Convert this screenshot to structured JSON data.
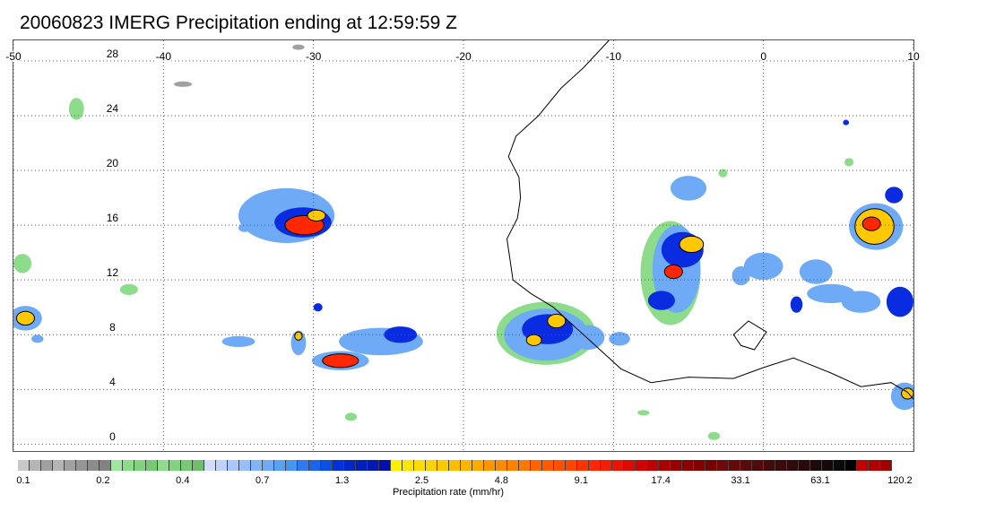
{
  "title": "20060823 IMERG Precipitation ending at 12:59:59 Z",
  "map": {
    "extent": {
      "lon_min": -50,
      "lon_max": 10,
      "lat_min": -0.5,
      "lat_max": 29.5
    },
    "lon_ticks": [
      {
        "value": -50,
        "label": "-50"
      },
      {
        "value": -40,
        "label": "-40"
      },
      {
        "value": -30,
        "label": "-30"
      },
      {
        "value": -20,
        "label": "-20"
      },
      {
        "value": -10,
        "label": "-10"
      },
      {
        "value": 0,
        "label": "0"
      },
      {
        "value": 10,
        "label": "10"
      }
    ],
    "lat_ticks": [
      {
        "value": 0,
        "label": "0"
      },
      {
        "value": 4,
        "label": "4"
      },
      {
        "value": 8,
        "label": "8"
      },
      {
        "value": 12,
        "label": "12"
      },
      {
        "value": 16,
        "label": "16"
      },
      {
        "value": 20,
        "label": "20"
      },
      {
        "value": 24,
        "label": "24"
      },
      {
        "value": 28,
        "label": "28"
      }
    ],
    "grid": "dotted",
    "coastline": [
      [
        -10.3,
        29.5
      ],
      [
        -12,
        27.5
      ],
      [
        -13.5,
        26
      ],
      [
        -15,
        24
      ],
      [
        -16.5,
        22.5
      ],
      [
        -17,
        21
      ],
      [
        -16.3,
        19.5
      ],
      [
        -16.2,
        18
      ],
      [
        -16.4,
        16.5
      ],
      [
        -17.1,
        15
      ],
      [
        -16.9,
        13.5
      ],
      [
        -16.7,
        12
      ],
      [
        -15.5,
        11
      ],
      [
        -14,
        10
      ],
      [
        -13,
        9
      ],
      [
        -12,
        8
      ],
      [
        -11,
        7
      ],
      [
        -9.5,
        5.5
      ],
      [
        -7.5,
        4.5
      ],
      [
        -5,
        4.9
      ],
      [
        -2,
        4.8
      ],
      [
        0,
        5.6
      ],
      [
        2,
        6.3
      ],
      [
        4.5,
        5.2
      ],
      [
        6.5,
        4.2
      ],
      [
        8.5,
        4.5
      ],
      [
        9.6,
        3.8
      ],
      [
        10,
        3.3
      ]
    ],
    "lake": [
      [
        -2,
        8
      ],
      [
        -1,
        9
      ],
      [
        0.2,
        8.2
      ],
      [
        -0.6,
        6.9
      ],
      [
        -1.5,
        7.2
      ]
    ],
    "precip_cells": [
      {
        "lon": -31.8,
        "lat": 16.7,
        "rx": 3.2,
        "ry": 2.0,
        "level": 2
      },
      {
        "lon": -30.7,
        "lat": 16.2,
        "rx": 1.9,
        "ry": 1.1,
        "level": 3
      },
      {
        "lon": -30.6,
        "lat": 16.0,
        "rx": 1.3,
        "ry": 0.7,
        "level": 5
      },
      {
        "lon": -29.8,
        "lat": 16.7,
        "rx": 0.6,
        "ry": 0.4,
        "level": 4
      },
      {
        "lon": -28.2,
        "lat": 6.1,
        "rx": 1.9,
        "ry": 0.7,
        "level": 2
      },
      {
        "lon": -28.2,
        "lat": 6.1,
        "rx": 1.2,
        "ry": 0.5,
        "level": 5
      },
      {
        "lon": -25.5,
        "lat": 7.5,
        "rx": 2.8,
        "ry": 1.0,
        "level": 2
      },
      {
        "lon": -24.2,
        "lat": 8.0,
        "rx": 1.1,
        "ry": 0.6,
        "level": 3
      },
      {
        "lon": -31.0,
        "lat": 7.4,
        "rx": 0.5,
        "ry": 0.9,
        "level": 2
      },
      {
        "lon": -31.0,
        "lat": 7.9,
        "rx": 0.25,
        "ry": 0.3,
        "level": 4
      },
      {
        "lon": -29.7,
        "lat": 10.0,
        "rx": 0.3,
        "ry": 0.3,
        "level": 3
      },
      {
        "lon": -35.0,
        "lat": 7.5,
        "rx": 1.1,
        "ry": 0.4,
        "level": 2
      },
      {
        "lon": -49.2,
        "lat": 9.2,
        "rx": 1.1,
        "ry": 0.9,
        "level": 2
      },
      {
        "lon": -49.2,
        "lat": 9.2,
        "rx": 0.6,
        "ry": 0.5,
        "level": 4
      },
      {
        "lon": -48.4,
        "lat": 7.7,
        "rx": 0.4,
        "ry": 0.3,
        "level": 2
      },
      {
        "lon": -49.4,
        "lat": 13.2,
        "rx": 0.6,
        "ry": 0.7,
        "level": 1
      },
      {
        "lon": -42.3,
        "lat": 11.3,
        "rx": 0.6,
        "ry": 0.4,
        "level": 1
      },
      {
        "lon": -45.8,
        "lat": 24.5,
        "rx": 0.5,
        "ry": 0.8,
        "level": 1
      },
      {
        "lon": -33.5,
        "lat": 16.0,
        "rx": 0.5,
        "ry": 0.4,
        "level": 2
      },
      {
        "lon": -34.6,
        "lat": 15.8,
        "rx": 0.4,
        "ry": 0.3,
        "level": 2
      },
      {
        "lon": -14.5,
        "lat": 8.1,
        "rx": 3.3,
        "ry": 2.3,
        "level": 1
      },
      {
        "lon": -14.5,
        "lat": 8.0,
        "rx": 2.8,
        "ry": 1.9,
        "level": 2
      },
      {
        "lon": -14.4,
        "lat": 8.4,
        "rx": 1.7,
        "ry": 1.1,
        "level": 3
      },
      {
        "lon": -13.8,
        "lat": 9.0,
        "rx": 0.6,
        "ry": 0.5,
        "level": 4
      },
      {
        "lon": -15.3,
        "lat": 7.6,
        "rx": 0.5,
        "ry": 0.4,
        "level": 4
      },
      {
        "lon": -11.7,
        "lat": 7.8,
        "rx": 1.1,
        "ry": 0.9,
        "level": 2
      },
      {
        "lon": -9.6,
        "lat": 7.7,
        "rx": 0.7,
        "ry": 0.5,
        "level": 2
      },
      {
        "lon": -6.2,
        "lat": 12.5,
        "rx": 2.0,
        "ry": 3.8,
        "level": 1
      },
      {
        "lon": -5.8,
        "lat": 12.8,
        "rx": 1.6,
        "ry": 3.2,
        "level": 2
      },
      {
        "lon": -5.4,
        "lat": 14.2,
        "rx": 1.4,
        "ry": 1.3,
        "level": 3
      },
      {
        "lon": -4.8,
        "lat": 14.6,
        "rx": 0.8,
        "ry": 0.6,
        "level": 4
      },
      {
        "lon": -6.0,
        "lat": 12.6,
        "rx": 0.6,
        "ry": 0.5,
        "level": 5
      },
      {
        "lon": -6.8,
        "lat": 10.5,
        "rx": 0.9,
        "ry": 0.7,
        "level": 3
      },
      {
        "lon": -5.0,
        "lat": 18.7,
        "rx": 1.2,
        "ry": 0.9,
        "level": 2
      },
      {
        "lon": 0.0,
        "lat": 13.0,
        "rx": 1.3,
        "ry": 1.0,
        "level": 2
      },
      {
        "lon": -1.5,
        "lat": 12.3,
        "rx": 0.6,
        "ry": 0.7,
        "level": 2
      },
      {
        "lon": 3.5,
        "lat": 12.6,
        "rx": 1.1,
        "ry": 0.9,
        "level": 2
      },
      {
        "lon": 4.5,
        "lat": 11.0,
        "rx": 1.6,
        "ry": 0.7,
        "level": 2
      },
      {
        "lon": 6.5,
        "lat": 10.4,
        "rx": 1.3,
        "ry": 0.8,
        "level": 2
      },
      {
        "lon": 2.2,
        "lat": 10.2,
        "rx": 0.4,
        "ry": 0.6,
        "level": 3
      },
      {
        "lon": 7.5,
        "lat": 15.9,
        "rx": 1.8,
        "ry": 1.7,
        "level": 2
      },
      {
        "lon": 7.4,
        "lat": 15.9,
        "rx": 1.3,
        "ry": 1.3,
        "level": 4
      },
      {
        "lon": 7.2,
        "lat": 16.1,
        "rx": 0.6,
        "ry": 0.5,
        "level": 5
      },
      {
        "lon": 8.7,
        "lat": 18.2,
        "rx": 0.6,
        "ry": 0.6,
        "level": 3
      },
      {
        "lon": 9.1,
        "lat": 10.4,
        "rx": 0.9,
        "ry": 1.1,
        "level": 3
      },
      {
        "lon": 9.4,
        "lat": 3.5,
        "rx": 0.9,
        "ry": 1.0,
        "level": 2
      },
      {
        "lon": 9.6,
        "lat": 3.7,
        "rx": 0.4,
        "ry": 0.4,
        "level": 4
      },
      {
        "lon": -2.7,
        "lat": 19.8,
        "rx": 0.3,
        "ry": 0.3,
        "level": 1
      },
      {
        "lon": 5.5,
        "lat": 23.5,
        "rx": 0.2,
        "ry": 0.2,
        "level": 3
      },
      {
        "lon": 5.7,
        "lat": 20.6,
        "rx": 0.3,
        "ry": 0.3,
        "level": 1
      },
      {
        "lon": -8.0,
        "lat": 2.3,
        "rx": 0.4,
        "ry": 0.2,
        "level": 1
      },
      {
        "lon": -3.3,
        "lat": 0.6,
        "rx": 0.4,
        "ry": 0.3,
        "level": 1
      },
      {
        "lon": -27.5,
        "lat": 2.0,
        "rx": 0.4,
        "ry": 0.3,
        "level": 1
      },
      {
        "lon": -38.7,
        "lat": 26.3,
        "rx": 0.6,
        "ry": 0.2,
        "level": 0
      },
      {
        "lon": -31.0,
        "lat": 29.0,
        "rx": 0.4,
        "ry": 0.2,
        "level": 0
      }
    ]
  },
  "colorbar": {
    "colors": [
      "#c8c8c8",
      "#b4b4b4",
      "#a0a0a0",
      "#b4b4b4",
      "#a0a0a0",
      "#969696",
      "#8c8c8c",
      "#828282",
      "#a0e6a0",
      "#8cdc8c",
      "#82d282",
      "#78c878",
      "#8cdc8c",
      "#82d282",
      "#78c878",
      "#6ebe6e",
      "#d2dcff",
      "#bed2ff",
      "#aac8ff",
      "#96befa",
      "#82b4fa",
      "#6eaaf5",
      "#5aa0f5",
      "#4696f0",
      "#3278f0",
      "#1e64eb",
      "#0a50e6",
      "#0032dc",
      "#0028c8",
      "#0020be",
      "#0018b4",
      "#0010aa",
      "#fff000",
      "#ffe600",
      "#ffdc00",
      "#ffd200",
      "#ffc800",
      "#ffbe00",
      "#ffb400",
      "#ffaa00",
      "#ff9600",
      "#ff8c00",
      "#ff8200",
      "#ff7800",
      "#ff6400",
      "#ff5a00",
      "#ff5000",
      "#ff4600",
      "#ff3200",
      "#ff2800",
      "#f51e00",
      "#eb1400",
      "#dc0a00",
      "#d20000",
      "#be0000",
      "#aa0000",
      "#960000",
      "#8c0000",
      "#820000",
      "#780000",
      "#6e0a0a",
      "#640a0a",
      "#5a0a0a",
      "#500a0a",
      "#460a0a",
      "#3c0a0a",
      "#320a0a",
      "#280a0a",
      "#1e0a0a",
      "#140a0a",
      "#0a0a0a",
      "#000000",
      "#c00000",
      "#b00000",
      "#a00000"
    ],
    "ticks": [
      {
        "index": 0,
        "label": "0.1"
      },
      {
        "index": 7,
        "label": "0.2"
      },
      {
        "index": 14,
        "label": "0.4"
      },
      {
        "index": 21,
        "label": "0.7"
      },
      {
        "index": 28,
        "label": "1.3"
      },
      {
        "index": 35,
        "label": "2.5"
      },
      {
        "index": 42,
        "label": "4.8"
      },
      {
        "index": 49,
        "label": "9.1"
      },
      {
        "index": 56,
        "label": "17.4"
      },
      {
        "index": 63,
        "label": "33.1"
      },
      {
        "index": 70,
        "label": "63.1"
      },
      {
        "index": 77,
        "label": "120.2"
      }
    ],
    "units": "Precipitation rate (mm/hr)"
  },
  "level_colors": [
    "#a0a0a0",
    "#8cdc8c",
    "#6eaaf5",
    "#0a2ce0",
    "#ffc800",
    "#ff2800"
  ]
}
